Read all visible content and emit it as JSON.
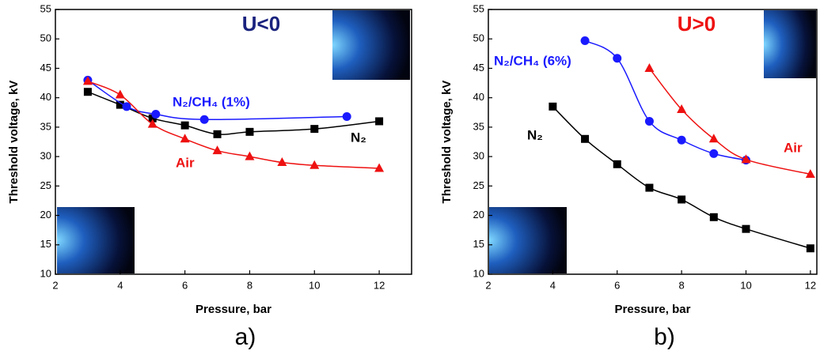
{
  "chart_data": [
    {
      "type": "line",
      "title": "U<0",
      "title_color": "#1a237e",
      "panel_label": "a)",
      "x_label": "Pressure, bar",
      "y_label": "Threshold voltage, kV",
      "xlim": [
        2,
        13
      ],
      "ylim": [
        10,
        55
      ],
      "xticks": [
        2,
        4,
        6,
        8,
        10,
        12
      ],
      "yticks": [
        10,
        15,
        20,
        25,
        30,
        35,
        40,
        45,
        50,
        55
      ],
      "series": [
        {
          "name": "N₂",
          "color": "#000000",
          "marker": "square",
          "x": [
            3,
            4,
            5,
            6,
            7,
            8,
            10,
            12
          ],
          "values": [
            41,
            38.8,
            36.5,
            35.3,
            33.8,
            34.2,
            34.7,
            36
          ]
        },
        {
          "name": "N₂/CH₄ (1%)",
          "color": "#1a1aff",
          "marker": "circle",
          "x": [
            3,
            4.2,
            5.1,
            6.6,
            11
          ],
          "values": [
            43,
            38.5,
            37.2,
            36.3,
            36.8
          ]
        },
        {
          "name": "Air",
          "color": "#ee1111",
          "marker": "triangle",
          "x": [
            3,
            4,
            5,
            6,
            7,
            8,
            9,
            10,
            12
          ],
          "values": [
            42.8,
            40.5,
            35.5,
            33,
            31,
            30,
            29,
            28.5,
            28
          ]
        }
      ]
    },
    {
      "type": "line",
      "title": "U>0",
      "title_color": "#ee1111",
      "panel_label": "b)",
      "x_label": "Pressure, bar",
      "y_label": "Threshold voltage, kV",
      "xlim": [
        2,
        12.2
      ],
      "ylim": [
        10,
        55
      ],
      "xticks": [
        2,
        4,
        6,
        8,
        10,
        12
      ],
      "yticks": [
        10,
        15,
        20,
        25,
        30,
        35,
        40,
        45,
        50,
        55
      ],
      "series": [
        {
          "name": "N₂",
          "color": "#000000",
          "marker": "square",
          "x": [
            4,
            5,
            6,
            7,
            8,
            9,
            10,
            12
          ],
          "values": [
            38.5,
            33,
            28.7,
            24.7,
            22.7,
            19.7,
            17.7,
            14.4
          ]
        },
        {
          "name": "N₂/CH₄ (6%)",
          "color": "#1a1aff",
          "marker": "circle",
          "x": [
            5,
            6,
            7,
            8,
            9,
            10
          ],
          "values": [
            49.7,
            46.7,
            36,
            32.8,
            30.5,
            29.4
          ]
        },
        {
          "name": "Air",
          "color": "#ee1111",
          "marker": "triangle",
          "x": [
            7,
            8,
            9,
            10,
            12
          ],
          "values": [
            45,
            38,
            33,
            29.5,
            27
          ]
        }
      ]
    }
  ]
}
